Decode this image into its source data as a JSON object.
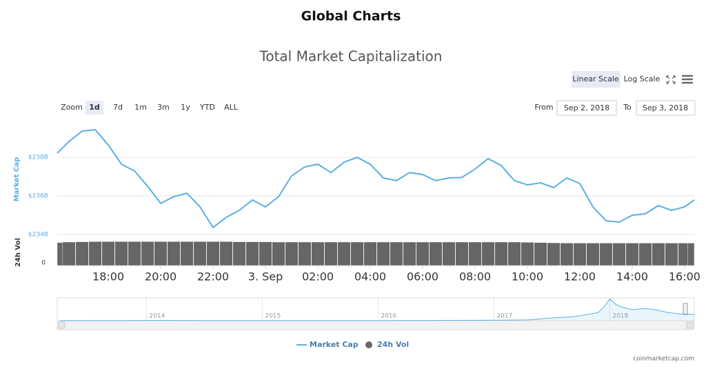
{
  "header": {
    "title": "Global Charts"
  },
  "controls": {
    "scales": [
      "Linear Scale",
      "Log Scale"
    ],
    "zoom_label": "Zoom",
    "zoom_buttons": [
      "1d",
      "7d",
      "1m",
      "3m",
      "1y",
      "YTD",
      "ALL"
    ],
    "active_zoom": "1d",
    "from_label": "From",
    "from": "Sep 2, 2018",
    "to_label": "To",
    "to": "Sep 3, 2018"
  },
  "chart_data": {
    "type": "line",
    "title": "Total Market Capitalization",
    "ylabel": "Market Cap",
    "y2label": "24h Vol",
    "x": [
      16.05,
      16.5,
      17,
      17.5,
      18,
      18.5,
      19,
      19.5,
      20,
      20.5,
      21,
      21.5,
      22,
      22.5,
      23,
      23.5,
      24,
      24.5,
      25,
      25.5,
      26,
      26.5,
      27,
      27.5,
      28,
      28.5,
      29,
      29.5,
      30,
      30.5,
      31,
      31.5,
      32,
      32.5,
      33,
      33.5,
      34,
      34.5,
      35,
      35.5,
      36,
      36.5,
      37,
      37.5,
      38,
      38.5,
      39,
      39.5,
      40,
      40.37
    ],
    "series": [
      {
        "name": "Market Cap",
        "color": "#5aaee3",
        "values": [
          238.21,
          238.82,
          239.36,
          239.43,
          238.64,
          237.64,
          237.29,
          236.5,
          235.61,
          235.96,
          236.14,
          235.43,
          234.36,
          234.89,
          235.25,
          235.79,
          235.43,
          235.96,
          237.04,
          237.5,
          237.64,
          237.21,
          237.75,
          238.0,
          237.64,
          236.93,
          236.79,
          237.21,
          237.11,
          236.79,
          236.93,
          236.96,
          237.39,
          237.93,
          237.57,
          236.79,
          236.57,
          236.68,
          236.43,
          236.93,
          236.64,
          235.43,
          234.71,
          234.64,
          235.0,
          235.07,
          235.5,
          235.25,
          235.43,
          235.79
        ]
      },
      {
        "name": "24h Vol",
        "color": "#666666",
        "axis": "y2",
        "values": [
          90,
          92,
          93,
          94,
          94,
          94,
          94,
          94,
          94,
          94,
          94,
          94,
          94,
          94,
          93,
          93,
          93,
          92,
          92,
          92,
          92,
          92,
          92,
          92,
          92,
          92,
          92,
          92,
          92,
          92,
          92,
          92,
          92,
          92,
          92,
          92,
          91,
          90,
          89,
          88,
          88,
          88,
          88,
          88,
          88,
          88,
          88,
          88,
          88,
          88
        ]
      }
    ],
    "xlim": [
      16.05,
      40.37
    ],
    "xticks": [
      {
        "value": 18,
        "label": "18:00"
      },
      {
        "value": 20,
        "label": "20:00"
      },
      {
        "value": 22,
        "label": "22:00"
      },
      {
        "value": 24,
        "label": "3. Sep"
      },
      {
        "value": 26,
        "label": "02:00"
      },
      {
        "value": 28,
        "label": "04:00"
      },
      {
        "value": 30,
        "label": "06:00"
      },
      {
        "value": 32,
        "label": "08:00"
      },
      {
        "value": 34,
        "label": "10:00"
      },
      {
        "value": 36,
        "label": "12:00"
      },
      {
        "value": 38,
        "label": "14:00"
      },
      {
        "value": 40,
        "label": "16:00"
      }
    ],
    "ylim": [
      233.82,
      239.79
    ],
    "yticks": [
      {
        "value": 234,
        "label": "$234B"
      },
      {
        "value": 236,
        "label": "$236B"
      },
      {
        "value": 238,
        "label": "$238B"
      }
    ],
    "y2lim": [
      0,
      100
    ],
    "y2ticks": [
      0
    ],
    "grid": true,
    "navigator": {
      "x": [
        2013.25,
        2013.8,
        2014,
        2014.5,
        2015,
        2015.5,
        2016,
        2016.5,
        2017,
        2017.3,
        2017.5,
        2017.7,
        2017.9,
        2017.95,
        2018,
        2018.05,
        2018.1,
        2018.2,
        2018.3,
        2018.4,
        2018.5,
        2018.6,
        2018.73
      ],
      "values": [
        2,
        8,
        10,
        8,
        5,
        4,
        7,
        10,
        17,
        30,
        100,
        150,
        300,
        500,
        800,
        600,
        500,
        400,
        450,
        400,
        300,
        250,
        230
      ],
      "xlim": [
        2013.23,
        2018.73
      ],
      "ylim": [
        0,
        830
      ],
      "xticks": [
        2014,
        2015,
        2016,
        2017,
        2018
      ]
    },
    "legend": "bottom",
    "credit": "coinmarketcap.com"
  }
}
